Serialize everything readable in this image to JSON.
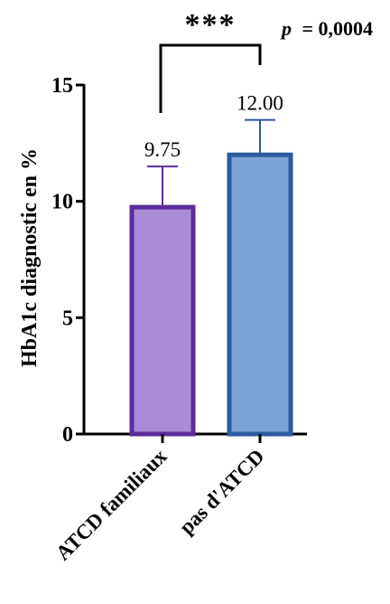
{
  "chart_data": {
    "type": "bar",
    "categories": [
      "ATCD familiaux",
      "pas d'ATCD"
    ],
    "values": [
      9.75,
      12.0
    ],
    "value_labels": [
      "9.75",
      "12.00"
    ],
    "error_upper": [
      11.5,
      13.5
    ],
    "ylabel": "HbA1c diagnostic en %",
    "xlabel": "",
    "ylim": [
      0,
      15
    ],
    "yticks": [
      0,
      5,
      10,
      15
    ],
    "grid": false,
    "colors": {
      "fills": [
        "#a98bd6",
        "#7ea3d8"
      ],
      "strokes": [
        "#5b2c9a",
        "#2e5a9f"
      ],
      "errors": [
        "#5b2c9a",
        "#2e5a9f"
      ],
      "axis": "#000000"
    },
    "significance": {
      "stars": "***",
      "p_prefix": "p",
      "p_value": "= 0,0004"
    }
  }
}
